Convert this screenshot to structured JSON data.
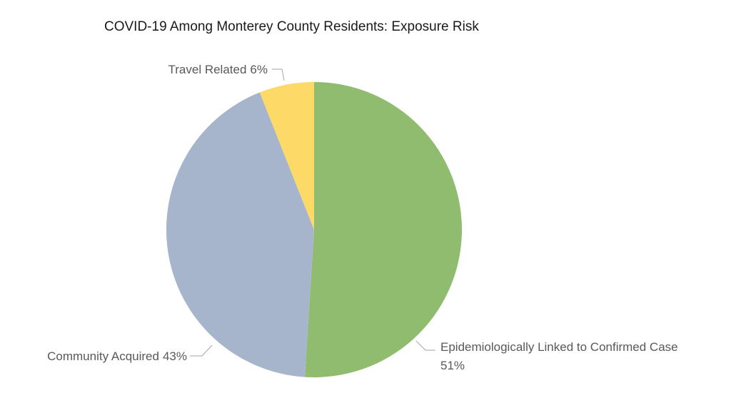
{
  "chart_data": {
    "type": "pie",
    "title": "COVID-19 Among Monterey County Residents: Exposure Risk",
    "categories": [
      "Epidemiologically Linked to Confirmed Case",
      "Community Acquired",
      "Travel Related"
    ],
    "values": [
      51,
      43,
      6
    ],
    "value_labels": [
      "51%",
      "43%",
      "6%"
    ],
    "colors": [
      "#8fbc6e",
      "#a6b5cb",
      "#fdd968"
    ]
  }
}
